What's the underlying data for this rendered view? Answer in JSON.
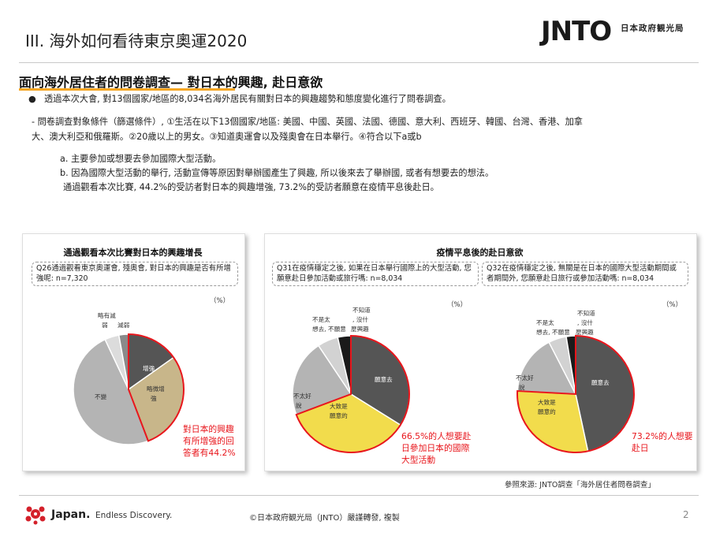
{
  "header": {
    "title": "III. 海外如何看待東京奧運2020",
    "logo": "JNTO",
    "org": "日本政府観光局"
  },
  "section": {
    "title": "面向海外居住者的問卷調查— 對日本的興趣, 赴日意欲"
  },
  "body": {
    "bullet_mark": "●",
    "bullet": "透過本次大會, 對13個國家/地區的8,034名海外居民有關對日本的興趣趨勢和態度變化進行了問卷調查。",
    "condition_line1": "- 問卷調查對象條件（篩選條件）, ①生活在以下13個國家/地區: 美國、中國、英國、法國、德國、意大利、西班牙、韓國、台灣、香港、加拿",
    "condition_line2": "大、澳大利亞和俄羅斯。②20歲以上的男女。③知道奧運會以及殘奧會在日本舉行。④符合以下a或b",
    "item_a": "a.  主要參加或想要去參加國際大型活動。",
    "item_b": "b.  因為國際大型活動的舉行, 活動宣傳等原因對舉辦國產生了興趣, 所以後來去了舉辦國, 或者有想要去的想法。",
    "summary": "通過觀看本次比賽, 44.2%的受訪者對日本的興趣增強, 73.2%的受訪者願意在疫情平息後赴日。"
  },
  "chart_data": [
    {
      "type": "pie",
      "title": "通過觀看本次比賽對日本的興趣增長",
      "question": "Q26通過觀看東京奧運會, 殘奧會, 對日本的興趣是否有所增強呢: n=7,320",
      "unit": "（%）",
      "categories": [
        "增強",
        "略微增強",
        "不變",
        "略有減弱",
        "減弱"
      ],
      "values": [
        15.2,
        29.0,
        48.8,
        4.2,
        2.8
      ],
      "highlighted": [
        "增強",
        "略微增強"
      ],
      "colors": [
        "#555555",
        "#c8b68a",
        "#b4b4b4",
        "#dcdcdc",
        "#8a8a8a"
      ],
      "note": "對日本的興趣有所增強的回答者有44.2%"
    },
    {
      "type": "pie",
      "title": "疫情平息後的赴日意欲",
      "question": "Q31在疫情穩定之後, 如果在日本舉行國際上的大型活動, 您願意赴日參加活動或旅行嗎: n=8,034",
      "unit": "（%）",
      "categories": [
        "願意去",
        "大致是願意的",
        "不太好說",
        "不是太想去, 不願意",
        "不知道, 沒什麼興趣"
      ],
      "values": [
        32.5,
        34.0,
        20.5,
        5.5,
        3.5
      ],
      "highlighted": [
        "願意去",
        "大致是願意的"
      ],
      "colors": [
        "#555555",
        "#f2dc4c",
        "#b4b4b4",
        "#d2d2d2",
        "#1a1a1a",
        "#dbe4f0"
      ],
      "note": "66.5%的人想要赴日參加日本的國際大型活動"
    },
    {
      "type": "pie",
      "title": "疫情平息後的赴日意欲",
      "question": "Q32在疫情穩定之後, 無關是在日本的國際大型活動期間或者期間外, 您願意赴日旅行或參加活動嗎: n=8,034",
      "unit": "（%）",
      "categories": [
        "願意去",
        "大致是願意的",
        "不太好說",
        "不是太想去, 不願意",
        "不知道, 沒什麼興趣"
      ],
      "values": [
        45.0,
        28.2,
        16.0,
        4.8,
        2.5
      ],
      "highlighted": [
        "願意去",
        "大致是願意的"
      ],
      "colors": [
        "#555555",
        "#f2dc4c",
        "#b4b4b4",
        "#d2d2d2",
        "#1a1a1a",
        "#dbe4f0"
      ],
      "note": "73.2%的人想要赴日"
    }
  ],
  "pie_labels": {
    "c1": {
      "s0": "增強",
      "s1a": "略微增",
      "s1b": "強",
      "s2": "不變",
      "s3a": "略有減",
      "s3b": "弱",
      "s4": "減弱"
    },
    "c2": {
      "s0": "願意去",
      "s1a": "大致是",
      "s1b": "願意的",
      "s2a": "不太好",
      "s2b": "說",
      "s3a": "不是太",
      "s3b": "想去, 不願意",
      "s4a": "不知道",
      "s4b": ", 沒什",
      "s4c": "麼興趣"
    },
    "c3": {
      "s0": "願意去",
      "s1a": "大致是",
      "s1b": "願意的",
      "s2a": "不太好",
      "s2b": "說",
      "s3a": "不是太",
      "s3b": "想去, 不願意",
      "s4a": "不知道",
      "s4b": ", 沒什",
      "s4c": "麼興趣"
    }
  },
  "source": "參照來源: JNTO調查「海外居住者問卷調查」",
  "footer": {
    "brand": "Japan.",
    "tagline": "Endless Discovery.",
    "copyright": "©日本政府観光局（JNTO）嚴謹轉發, 複製",
    "page": "2"
  }
}
